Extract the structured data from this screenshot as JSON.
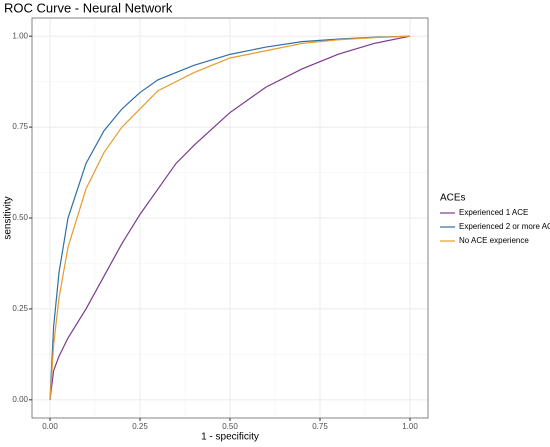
{
  "chart_data": {
    "type": "line",
    "title": "ROC Curve - Neural Network",
    "x_label": "1 - specificity",
    "y_label": "sensitivity",
    "legend_title": "ACEs",
    "legend_position": "right",
    "grid": true,
    "xlim": [
      -0.05,
      1.05
    ],
    "ylim": [
      -0.05,
      1.05
    ],
    "xticks": [
      {
        "value": 0,
        "label": "0.00"
      },
      {
        "value": 0.25,
        "label": "0.25"
      },
      {
        "value": 0.5,
        "label": "0.50"
      },
      {
        "value": 0.75,
        "label": "0.75"
      },
      {
        "value": 1,
        "label": "1.00"
      }
    ],
    "yticks": [
      {
        "value": 0,
        "label": "0.00"
      },
      {
        "value": 0.25,
        "label": "0.25"
      },
      {
        "value": 0.5,
        "label": "0.50"
      },
      {
        "value": 0.75,
        "label": "0.75"
      },
      {
        "value": 1,
        "label": "1.00"
      }
    ],
    "minor_ticks": [
      0.125,
      0.375,
      0.625,
      0.875
    ],
    "x": [
      0,
      0.01,
      0.025,
      0.05,
      0.1,
      0.15,
      0.2,
      0.25,
      0.3,
      0.35,
      0.4,
      0.5,
      0.6,
      0.7,
      0.8,
      0.9,
      1
    ],
    "series": [
      {
        "name": "Experienced 1 ACE",
        "color": "#7b3a8e",
        "values": [
          0,
          0.08,
          0.12,
          0.17,
          0.25,
          0.34,
          0.43,
          0.51,
          0.58,
          0.65,
          0.7,
          0.79,
          0.86,
          0.91,
          0.95,
          0.98,
          1
        ]
      },
      {
        "name": "Experienced 2 or more ACEs",
        "color": "#2e6fa7",
        "values": [
          0,
          0.2,
          0.35,
          0.5,
          0.65,
          0.74,
          0.8,
          0.845,
          0.88,
          0.9,
          0.92,
          0.95,
          0.97,
          0.985,
          0.992,
          0.997,
          1
        ]
      },
      {
        "name": "No ACE experience",
        "color": "#e89a2c",
        "values": [
          0,
          0.15,
          0.28,
          0.42,
          0.58,
          0.68,
          0.75,
          0.8,
          0.85,
          0.875,
          0.9,
          0.94,
          0.96,
          0.98,
          0.99,
          0.996,
          1
        ]
      }
    ]
  }
}
